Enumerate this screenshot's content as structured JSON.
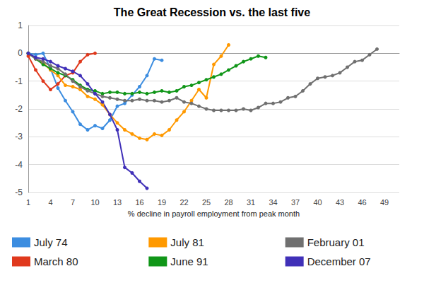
{
  "chart_data": {
    "type": "line",
    "title": "The Great Recession vs. the last five",
    "x_label": "% decline in payroll employment from peak month",
    "x": [
      1,
      2,
      3,
      4,
      5,
      6,
      7,
      8,
      9,
      10,
      11,
      12,
      13,
      14,
      15,
      16,
      17,
      18,
      19,
      20,
      21,
      22,
      23,
      24,
      25,
      26,
      27,
      28,
      29,
      30,
      31,
      32,
      33,
      34,
      35,
      36,
      37,
      38,
      39,
      40,
      41,
      42,
      43,
      44,
      45,
      46,
      47,
      48
    ],
    "xlim": [
      1,
      51
    ],
    "xticks": [
      1,
      4,
      7,
      10,
      13,
      16,
      19,
      22,
      25,
      28,
      31,
      34,
      37,
      40,
      43,
      46,
      49
    ],
    "ylim": [
      -5,
      1
    ],
    "yticks": [
      -5,
      -4,
      -3,
      -2,
      -1,
      0,
      1
    ],
    "grid": true,
    "legend": "bottom",
    "marker": "circle",
    "series": [
      {
        "name": "July 74",
        "color": "#3c8de0",
        "values": [
          0,
          -0.05,
          0,
          -0.55,
          -1.25,
          -1.7,
          -2.1,
          -2.55,
          -2.75,
          -2.6,
          -2.7,
          -2.4,
          -1.9,
          -1.8,
          -1.5,
          -1.2,
          -0.8,
          -0.2,
          -0.25,
          null,
          null,
          null,
          null,
          null,
          null,
          null,
          null,
          null,
          null,
          null,
          null,
          null,
          null,
          null,
          null,
          null,
          null,
          null,
          null,
          null,
          null,
          null,
          null,
          null,
          null,
          null,
          null,
          null
        ]
      },
      {
        "name": "March 80",
        "color": "#e0391d",
        "values": [
          -0.1,
          -0.6,
          -1.0,
          -1.3,
          -1.1,
          -0.8,
          -0.7,
          -0.3,
          -0.05,
          0,
          null,
          null,
          null,
          null,
          null,
          null,
          null,
          null,
          null,
          null,
          null,
          null,
          null,
          null,
          null,
          null,
          null,
          null,
          null,
          null,
          null,
          null,
          null,
          null,
          null,
          null,
          null,
          null,
          null,
          null,
          null,
          null,
          null,
          null,
          null,
          null,
          null,
          null
        ]
      },
      {
        "name": "July 81",
        "color": "#ff9900",
        "values": [
          0,
          -0.2,
          -0.35,
          -0.6,
          -0.8,
          -1.15,
          -1.2,
          -1.3,
          -1.55,
          -1.65,
          -1.85,
          -2.2,
          -2.5,
          -2.75,
          -2.9,
          -3.05,
          -3.1,
          -2.9,
          -2.95,
          -2.75,
          -2.4,
          -2.1,
          -1.7,
          -1.3,
          -1.6,
          -0.4,
          -0.1,
          0.3,
          null,
          null,
          null,
          null,
          null,
          null,
          null,
          null,
          null,
          null,
          null,
          null,
          null,
          null,
          null,
          null,
          null,
          null,
          null,
          null
        ]
      },
      {
        "name": "June 91",
        "color": "#109618",
        "values": [
          0,
          -0.2,
          -0.4,
          -0.55,
          -0.7,
          -0.8,
          -0.95,
          -1.15,
          -1.3,
          -1.35,
          -1.45,
          -1.4,
          -1.4,
          -1.45,
          -1.45,
          -1.4,
          -1.45,
          -1.4,
          -1.35,
          -1.4,
          -1.35,
          -1.2,
          -1.15,
          -1.05,
          -0.95,
          -0.85,
          -0.75,
          -0.6,
          -0.45,
          -0.3,
          -0.2,
          -0.1,
          -0.15,
          null,
          null,
          null,
          null,
          null,
          null,
          null,
          null,
          null,
          null,
          null,
          null,
          null,
          null,
          null
        ]
      },
      {
        "name": "February 01",
        "color": "#707070",
        "values": [
          0,
          -0.2,
          -0.3,
          -0.45,
          -0.55,
          -0.75,
          -1.0,
          -1.2,
          -1.35,
          -1.45,
          -1.55,
          -1.6,
          -1.65,
          -1.7,
          -1.7,
          -1.65,
          -1.7,
          -1.7,
          -1.75,
          -1.7,
          -1.6,
          -1.75,
          -1.8,
          -1.9,
          -2.0,
          -2.05,
          -2.05,
          -2.05,
          -2.05,
          -2.0,
          -2.05,
          -1.95,
          -1.8,
          -1.8,
          -1.75,
          -1.6,
          -1.55,
          -1.35,
          -1.1,
          -0.9,
          -0.85,
          -0.8,
          -0.7,
          -0.5,
          -0.3,
          -0.25,
          -0.05,
          0.15
        ]
      },
      {
        "name": "December 07",
        "color": "#4030b8",
        "values": [
          0,
          -0.15,
          -0.2,
          -0.3,
          -0.45,
          -0.55,
          -0.65,
          -0.8,
          -1.1,
          -1.45,
          -1.75,
          -2.2,
          -2.75,
          -4.1,
          -4.3,
          -4.6,
          -4.85,
          null,
          null,
          null,
          null,
          null,
          null,
          null,
          null,
          null,
          null,
          null,
          null,
          null,
          null,
          null,
          null,
          null,
          null,
          null,
          null,
          null,
          null,
          null,
          null,
          null,
          null,
          null,
          null,
          null,
          null,
          null
        ]
      }
    ]
  }
}
